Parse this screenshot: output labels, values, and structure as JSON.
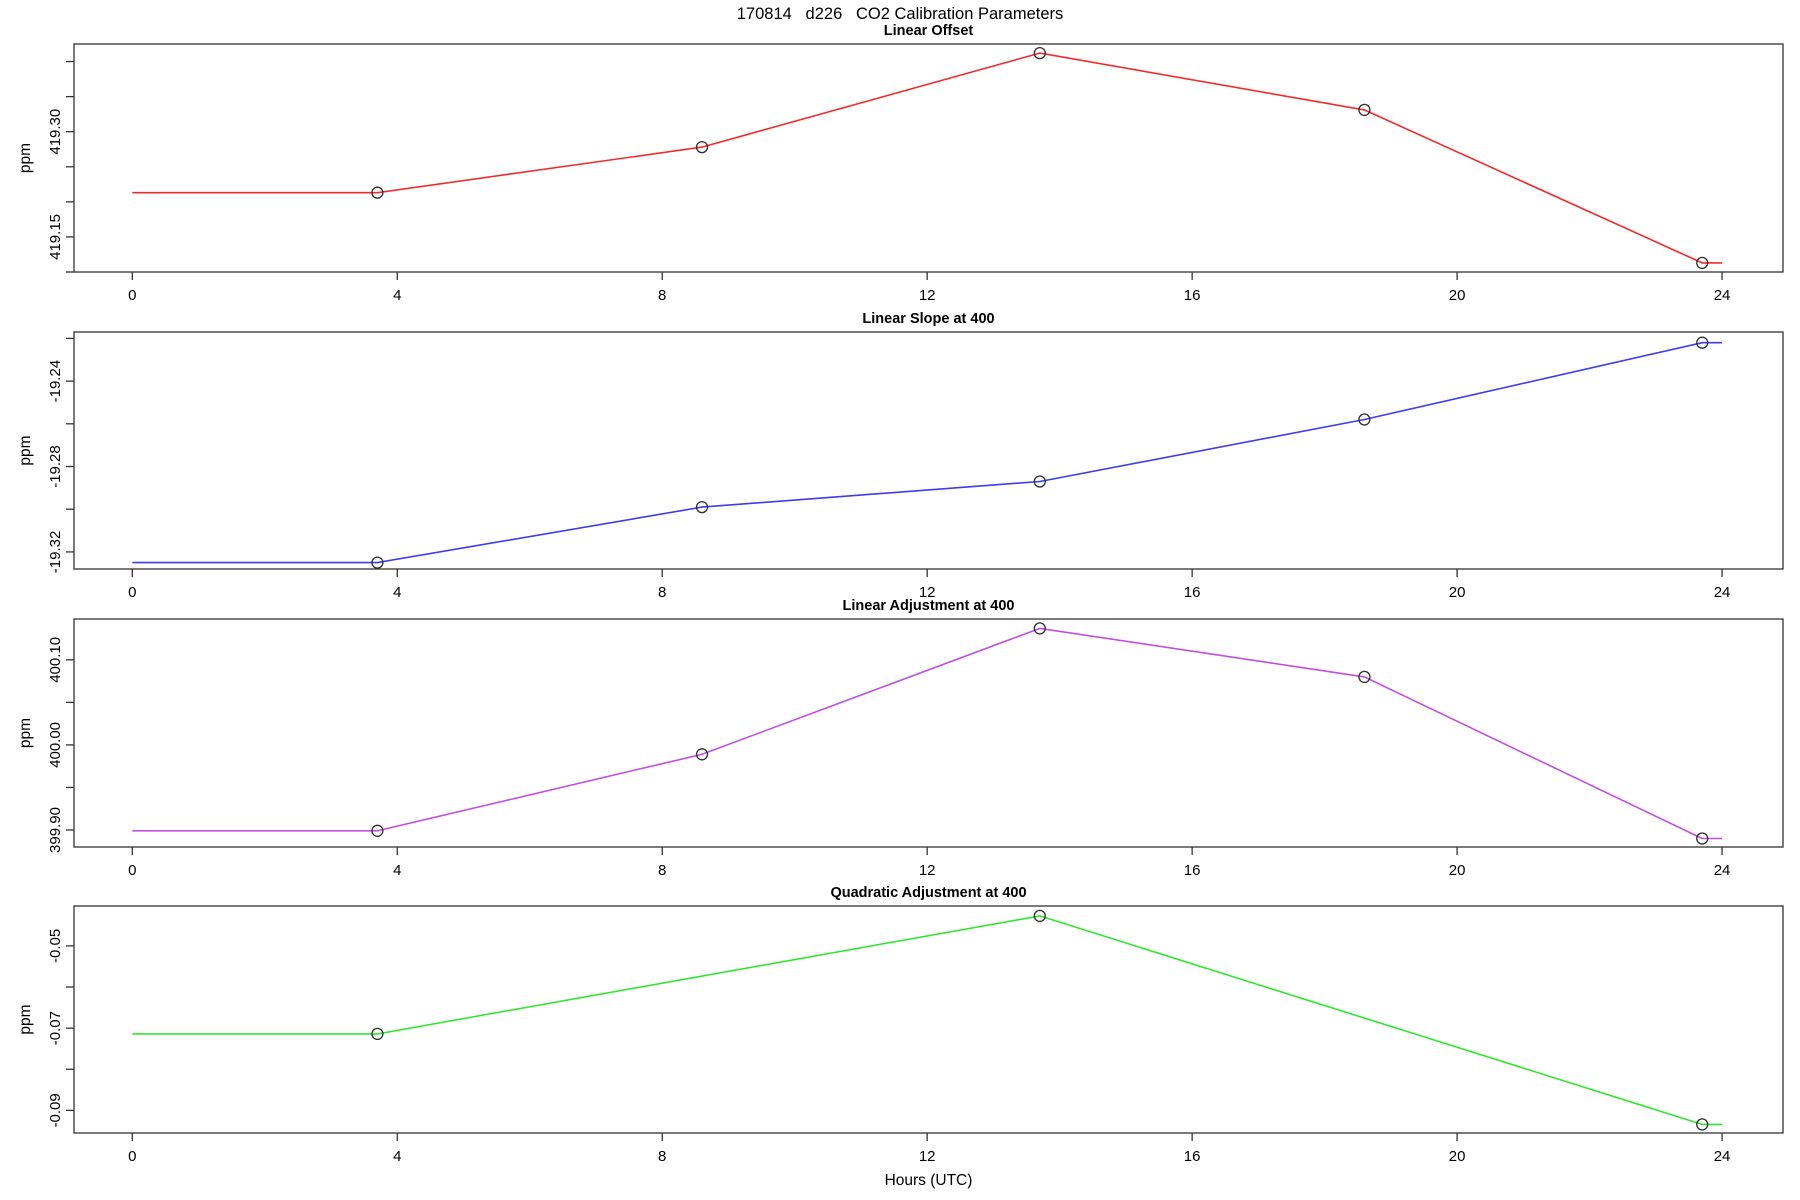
{
  "main_title": "170814   d226   CO2 Calibration Parameters",
  "chart_data": [
    {
      "type": "line",
      "title": "Linear Offset",
      "ylabel": "ppm",
      "xlabel": "",
      "line_color": "#f22c2c",
      "marker": "open-circle",
      "marker_color": "#2f2f2f",
      "x": [
        3.7,
        8.6,
        13.7,
        18.6,
        23.7
      ],
      "y": [
        419.213,
        419.278,
        419.412,
        419.331,
        419.113
      ],
      "flat_extension_x": [
        0,
        24
      ],
      "xlim": [
        -0.88,
        24.92
      ],
      "ylim": [
        419.1,
        419.425
      ],
      "xticks": [
        0,
        4,
        8,
        12,
        16,
        20,
        24
      ],
      "yticks": [
        419.1,
        419.15,
        419.2,
        419.25,
        419.3,
        419.35,
        419.4
      ],
      "ytick_labels": [
        "",
        "419.15",
        "",
        "",
        "419.30",
        "",
        ""
      ],
      "grid": false,
      "legend": "none"
    },
    {
      "type": "line",
      "title": "Linear Slope at 400",
      "ylabel": "ppm",
      "xlabel": "",
      "line_color": "#3c3cf0",
      "marker": "open-circle",
      "marker_color": "#2f2f2f",
      "x": [
        3.7,
        8.6,
        13.7,
        18.6,
        23.7
      ],
      "y": [
        -19.325,
        -19.299,
        -19.287,
        -19.258,
        -19.222
      ],
      "flat_extension_x": [
        0,
        24
      ],
      "xlim": [
        -0.88,
        24.92
      ],
      "ylim": [
        -19.328,
        -19.217
      ],
      "xticks": [
        0,
        4,
        8,
        12,
        16,
        20,
        24
      ],
      "yticks": [
        -19.32,
        -19.3,
        -19.28,
        -19.26,
        -19.24,
        -19.22
      ],
      "ytick_labels": [
        "-19.32",
        "",
        "-19.28",
        "",
        "-19.24",
        ""
      ],
      "grid": false,
      "legend": "none"
    },
    {
      "type": "line",
      "title": "Linear Adjustment at 400",
      "ylabel": "ppm",
      "xlabel": "",
      "line_color": "#c050e0",
      "marker": "open-circle",
      "marker_color": "#2f2f2f",
      "x": [
        3.7,
        8.6,
        13.7,
        18.6,
        23.7
      ],
      "y": [
        399.899,
        399.989,
        400.137,
        400.08,
        399.89
      ],
      "flat_extension_x": [
        0,
        24
      ],
      "xlim": [
        -0.88,
        24.92
      ],
      "ylim": [
        399.88,
        400.148
      ],
      "xticks": [
        0,
        4,
        8,
        12,
        16,
        20,
        24
      ],
      "yticks": [
        399.9,
        399.95,
        400.0,
        400.05,
        400.1
      ],
      "ytick_labels": [
        "399.90",
        "",
        "400.00",
        "",
        "400.10"
      ],
      "grid": false,
      "legend": "none"
    },
    {
      "type": "line",
      "title": "Quadratic Adjustment at 400",
      "ylabel": "ppm",
      "xlabel": "Hours (UTC)",
      "line_color": "#30e830",
      "marker": "open-circle",
      "marker_color": "#2f2f2f",
      "x": [
        3.7,
        13.7,
        23.7
      ],
      "y": [
        -0.0714,
        -0.0427,
        -0.0934
      ],
      "flat_extension_x": [
        0,
        24
      ],
      "xlim": [
        -0.88,
        24.92
      ],
      "ylim": [
        -0.0955,
        -0.0403
      ],
      "xticks": [
        0,
        4,
        8,
        12,
        16,
        20,
        24
      ],
      "yticks": [
        -0.09,
        -0.08,
        -0.07,
        -0.06,
        -0.05
      ],
      "ytick_labels": [
        "-0.09",
        "",
        "-0.07",
        "",
        "-0.05"
      ],
      "grid": false,
      "legend": "none"
    }
  ]
}
